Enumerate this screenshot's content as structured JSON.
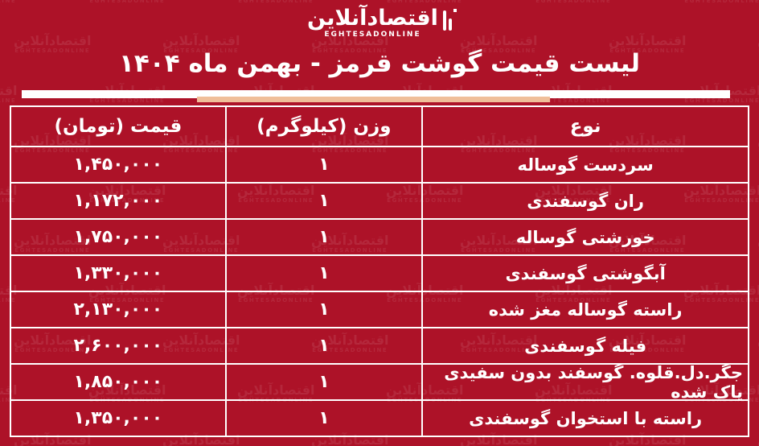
{
  "brand": {
    "logo_fa": "اقتصادآنلاین",
    "logo_en": "EGHTESADONLINE"
  },
  "watermark": {
    "text_fa": "اقتصادآنلاین",
    "text_en": "EGHTESADONLINE"
  },
  "page": {
    "title": "لیست قیمت گوشت قرمز - بهمن ماه ۱۴۰۴"
  },
  "colors": {
    "background": "#AD1228",
    "accent_bar": "#F0BE99",
    "table_border": "#FFFFFF",
    "text": "#FFFFFF"
  },
  "table": {
    "headers": {
      "type": "نوع",
      "weight": "وزن (کیلوگرم)",
      "price": "قیمت (تومان)"
    },
    "rows": [
      {
        "type": "سردست گوساله",
        "weight": "۱",
        "price": "۱,۴۵۰,۰۰۰"
      },
      {
        "type": "ران گوسفندی",
        "weight": "۱",
        "price": "۱,۱۷۲,۰۰۰"
      },
      {
        "type": "خورشتی گوساله",
        "weight": "۱",
        "price": "۱,۷۵۰,۰۰۰"
      },
      {
        "type": "آبگوشتی گوسفندی",
        "weight": "۱",
        "price": "۱,۳۳۰,۰۰۰"
      },
      {
        "type": "راسته گوساله مغز شده",
        "weight": "۱",
        "price": "۲,۱۳۰,۰۰۰"
      },
      {
        "type": "فیله گوسفندی",
        "weight": "۱",
        "price": "۲,۶۰۰,۰۰۰"
      },
      {
        "type": "جگر.دل.قلوه. گوسفند بدون سفیدی پاک شده",
        "weight": "۱",
        "price": "۱,۸۵۰,۰۰۰"
      },
      {
        "type": "راسته با استخوان گوسفندی",
        "weight": "۱",
        "price": "۱,۳۵۰,۰۰۰"
      }
    ]
  },
  "chart_data": {
    "type": "table",
    "title": "لیست قیمت گوشت قرمز - بهمن ماه ۱۴۰۴",
    "columns": [
      "نوع",
      "وزن (کیلوگرم)",
      "قیمت (تومان)"
    ],
    "rows": [
      [
        "سردست گوساله",
        1,
        1450000
      ],
      [
        "ران گوسفندی",
        1,
        1172000
      ],
      [
        "خورشتی گوساله",
        1,
        1750000
      ],
      [
        "آبگوشتی گوسفندی",
        1,
        1330000
      ],
      [
        "راسته گوساله مغز شده",
        1,
        2130000
      ],
      [
        "فیله گوسفندی",
        1,
        2600000
      ],
      [
        "جگر.دل.قلوه. گوسفند بدون سفیدی پاک شده",
        1,
        1850000
      ],
      [
        "راسته با استخوان گوسفندی",
        1,
        1350000
      ]
    ],
    "units": "تومان per kilogram"
  }
}
